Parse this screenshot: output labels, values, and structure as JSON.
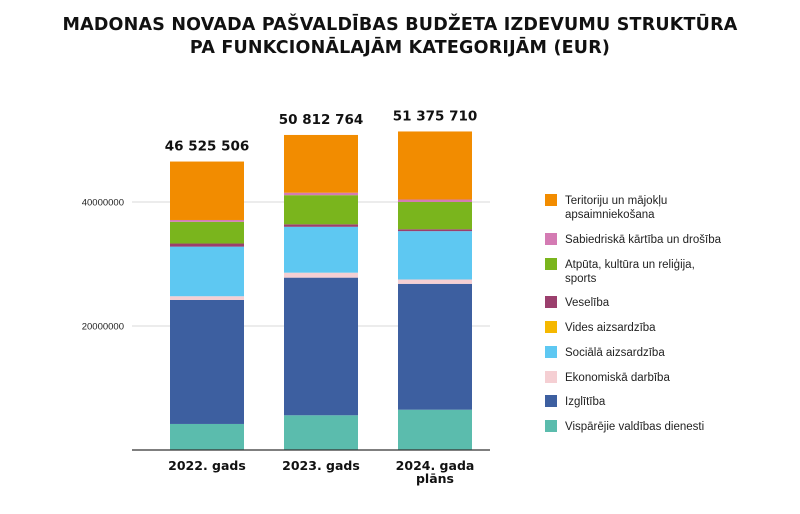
{
  "chart_data": {
    "type": "bar",
    "stacked": true,
    "title_lines": [
      "MADONAS NOVADA PAŠVALDĪBAS BUDŽETA IZDEVUMU STRUKTŪRA",
      "PA FUNKCIONĀLAJĀM KATEGORIJĀM (EUR)"
    ],
    "categories": [
      [
        "2022. gads"
      ],
      [
        "2023. gads"
      ],
      [
        "2024. gada",
        "plāns"
      ]
    ],
    "totals": [
      "46 525 506",
      "50 812 764",
      "51 375 710"
    ],
    "ylim": [
      0,
      60000000
    ],
    "yticks": [
      {
        "value": 20000000,
        "label": "20000000"
      },
      {
        "value": 40000000,
        "label": "40000000"
      }
    ],
    "legend_position": "right",
    "series": [
      {
        "name": "Vispārējie valdības dienesti",
        "color": "#5bbcad",
        "values": [
          4200000,
          5600000,
          6500000
        ]
      },
      {
        "name": "Izglītība",
        "color": "#3d5fa0",
        "values": [
          20000000,
          22200000,
          20300000
        ]
      },
      {
        "name": "Ekonomiskā darbība",
        "color": "#f5cfd3",
        "values": [
          600000,
          800000,
          700000
        ]
      },
      {
        "name": "Sociālā aizsardzība",
        "color": "#5ec8f2",
        "values": [
          8000000,
          7400000,
          7800000
        ]
      },
      {
        "name": "Vides aizsardzība",
        "color": "#f5b800",
        "values": [
          0,
          0,
          0
        ]
      },
      {
        "name": "Veselība",
        "color": "#9b3f6d",
        "values": [
          500000,
          400000,
          300000
        ]
      },
      {
        "name": "Atpūta, kultūra un reliģija, sports",
        "color": "#7ab51d",
        "values": [
          3500000,
          4700000,
          4400000
        ]
      },
      {
        "name": "Sabiedriskā kārtība un drošība",
        "color": "#d47bb3",
        "values": [
          300000,
          400000,
          400000
        ]
      },
      {
        "name": "Teritoriju un mājokļu apsaimniekošana",
        "color": "#f28c00",
        "values": [
          9425506,
          9312764,
          10975710
        ]
      }
    ],
    "legend_order": [
      8,
      7,
      6,
      5,
      4,
      3,
      2,
      1,
      0
    ],
    "legend_lines": [
      [
        "Teritoriju un mājokļu",
        "apsaimniekošana"
      ],
      [
        "Sabiedriskā kārtība un drošība"
      ],
      [
        "Atpūta, kultūra un reliģija,",
        "sports"
      ],
      [
        "Veselība"
      ],
      [
        "Vides aizsardzība"
      ],
      [
        "Sociālā aizsardzība"
      ],
      [
        "Ekonomiskā darbība"
      ],
      [
        "Izglītība"
      ],
      [
        "Vispārējie valdības dienesti"
      ]
    ]
  }
}
